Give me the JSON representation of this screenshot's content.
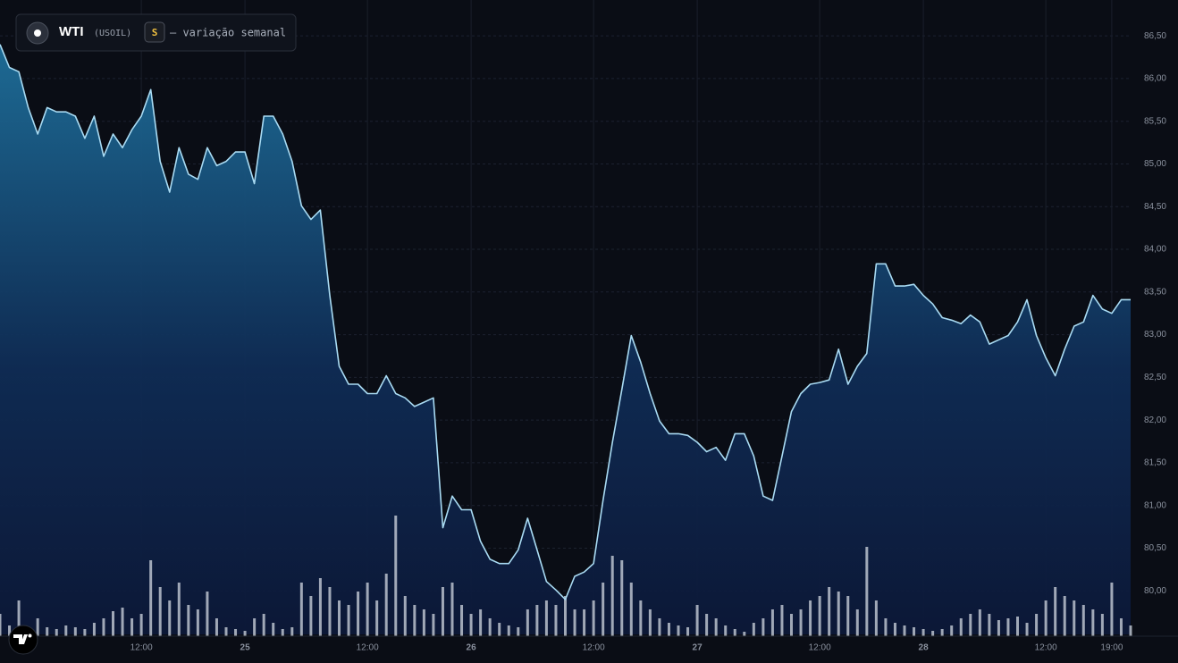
{
  "chart_data": {
    "type": "area",
    "title": "WTI",
    "symbol": "(USOIL)",
    "badge": "S",
    "subtitle": "— variação semanal",
    "categories": [
      null,
      null,
      null,
      null,
      null,
      null,
      null,
      null,
      null,
      null,
      null,
      null,
      null,
      null,
      null,
      "12:00",
      null,
      null,
      null,
      null,
      null,
      null,
      null,
      null,
      null,
      null,
      "25",
      null,
      null,
      null,
      null,
      null,
      null,
      null,
      null,
      null,
      null,
      null,
      null,
      "12:00",
      null,
      null,
      null,
      null,
      null,
      null,
      null,
      null,
      null,
      null,
      "26",
      null,
      null,
      null,
      null,
      null,
      null,
      null,
      null,
      null,
      null,
      null,
      null,
      "12:00",
      null,
      null,
      null,
      null,
      null,
      null,
      null,
      null,
      null,
      null,
      "27",
      null,
      null,
      null,
      null,
      null,
      null,
      null,
      null,
      null,
      null,
      null,
      null,
      "12:00",
      null,
      null,
      null,
      null,
      null,
      null,
      null,
      null,
      null,
      null,
      "28",
      null,
      null,
      null,
      null,
      null,
      null,
      null,
      null,
      null,
      null,
      null,
      null,
      "12:00",
      null,
      null,
      null,
      null,
      null,
      null,
      "19:00",
      null,
      null
    ],
    "series": [
      {
        "name": "WTI",
        "color": "#a9dbf3",
        "values": [
          86.4,
          86.13,
          86.08,
          85.66,
          85.35,
          85.66,
          85.61,
          85.61,
          85.56,
          85.3,
          85.56,
          85.09,
          85.35,
          85.19,
          85.4,
          85.56,
          85.87,
          85.03,
          84.67,
          85.19,
          84.88,
          84.82,
          85.19,
          84.98,
          85.03,
          85.14,
          85.14,
          84.77,
          85.56,
          85.56,
          85.35,
          85.03,
          84.51,
          84.35,
          84.46,
          83.46,
          82.63,
          82.42,
          82.42,
          82.31,
          82.31,
          82.52,
          82.31,
          82.26,
          82.16,
          82.21,
          82.26,
          80.74,
          81.11,
          80.95,
          80.95,
          80.58,
          80.37,
          80.32,
          80.32,
          80.48,
          80.85,
          80.48,
          80.11,
          80.01,
          79.9,
          80.17,
          80.22,
          80.32,
          81.06,
          81.74,
          82.36,
          82.99,
          82.68,
          82.31,
          81.99,
          81.84,
          81.84,
          81.82,
          81.74,
          81.63,
          81.68,
          81.53,
          81.84,
          81.84,
          81.58,
          81.11,
          81.06,
          81.58,
          82.1,
          82.31,
          82.42,
          82.44,
          82.47,
          82.83,
          82.42,
          82.63,
          82.78,
          83.83,
          83.83,
          83.57,
          83.57,
          83.59,
          83.46,
          83.36,
          83.2,
          83.17,
          83.13,
          83.23,
          83.15,
          82.89,
          82.94,
          82.99,
          83.15,
          83.41,
          82.99,
          82.73,
          82.52,
          82.83,
          83.1,
          83.15,
          83.46,
          83.3,
          83.25,
          83.41,
          83.41
        ]
      }
    ],
    "volume": {
      "color": "#d2d8e2",
      "values": [
        25,
        12,
        40,
        8,
        20,
        10,
        8,
        12,
        10,
        8,
        15,
        20,
        28,
        32,
        20,
        25,
        85,
        55,
        40,
        60,
        35,
        30,
        50,
        20,
        10,
        8,
        6,
        20,
        25,
        15,
        8,
        10,
        60,
        45,
        65,
        55,
        40,
        35,
        50,
        60,
        40,
        70,
        135,
        45,
        35,
        30,
        25,
        55,
        60,
        35,
        25,
        30,
        20,
        15,
        12,
        10,
        30,
        35,
        40,
        35,
        45,
        30,
        30,
        40,
        60,
        90,
        85,
        60,
        40,
        30,
        20,
        15,
        12,
        10,
        35,
        25,
        20,
        12,
        8,
        5,
        15,
        20,
        30,
        35,
        25,
        30,
        40,
        45,
        55,
        50,
        45,
        30,
        100,
        40,
        20,
        15,
        12,
        10,
        8,
        6,
        8,
        12,
        20,
        25,
        30,
        25,
        18,
        20,
        22,
        15,
        25,
        40,
        55,
        45,
        40,
        35,
        30,
        25,
        60,
        20,
        12
      ]
    },
    "ylim": [
      79.49,
      86.92
    ],
    "yticks": [
      {
        "value": 86.5,
        "label": "86,50"
      },
      {
        "value": 86.0,
        "label": "86,00"
      },
      {
        "value": 85.5,
        "label": "85,50"
      },
      {
        "value": 85.0,
        "label": "85,00"
      },
      {
        "value": 84.5,
        "label": "84,50"
      },
      {
        "value": 84.0,
        "label": "84,00"
      },
      {
        "value": 83.5,
        "label": "83,50"
      },
      {
        "value": 83.0,
        "label": "83,00"
      },
      {
        "value": 82.5,
        "label": "82,50"
      },
      {
        "value": 82.0,
        "label": "82,00"
      },
      {
        "value": 81.5,
        "label": "81,50"
      },
      {
        "value": 81.0,
        "label": "81,00"
      },
      {
        "value": 80.5,
        "label": "80,50"
      },
      {
        "value": 80.0,
        "label": "80,00"
      }
    ],
    "grid": true
  }
}
